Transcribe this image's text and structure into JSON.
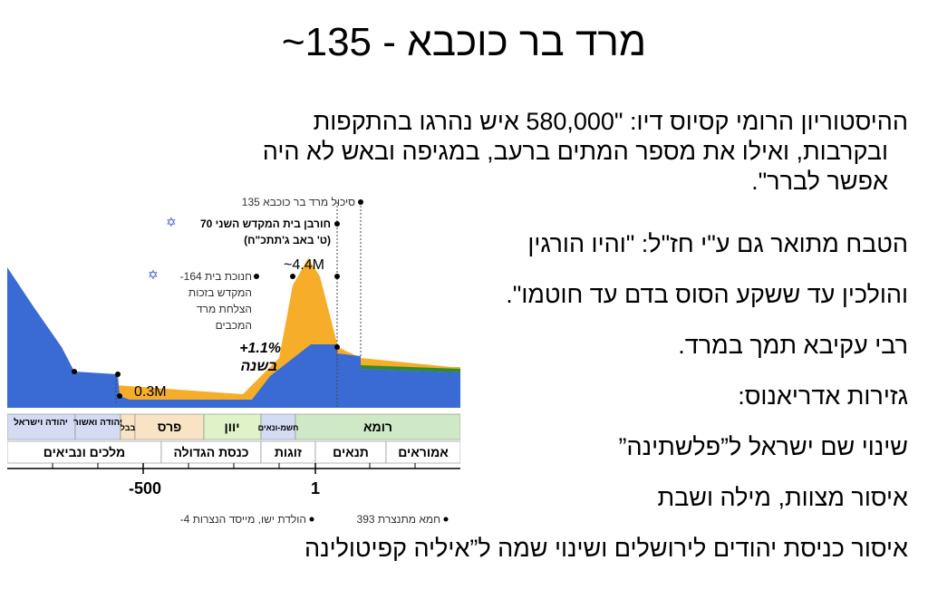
{
  "slide": {
    "title": "מרד בר כוכבא - 135~",
    "paragraphs": [
      {
        "line1": "ההיסטוריון הרומי קסיוס דיו: \"580,000 איש נהרגו בהתקפות",
        "line2": "ובקרבות, ואילו את מספר המתים ברעב, במגיפה ובאש לא היה",
        "line3": "אפשר לברר\"."
      },
      {
        "text": "הטבח מתואר גם ע\"י חז\"ל: \"והיו הורגין"
      },
      {
        "text": "והולכין עד ששקע הסוס בדם עד חוטמו\"."
      },
      {
        "text": "רבי עקיבא תמך במרד."
      },
      {
        "text": "גזירות אדריאנוס:"
      },
      {
        "text": "שינוי שם ישראל ל”פלשתינה”"
      },
      {
        "text": "איסור מצוות, מילה ושבת"
      },
      {
        "text": "איסור כניסת יהודים לירושלים ושינוי שמה ל”איליה קפיטולינה"
      }
    ]
  },
  "chart": {
    "annotations": {
      "a135": "135 סיכול מרד בר כוכבא",
      "a70_1": "70 חורבן בית המקדש השני",
      "a70_2": "(ט' באב ג'תתכ\"ח)",
      "a164_1": "-164 חנוכת בית",
      "a164_2": "המקדש בזכות",
      "a164_3": "הצלחת מרד",
      "a164_4": "המכבים",
      "peak": "~4.4M",
      "low": "0.3M",
      "growth1": "+1.1%",
      "growth2": "בשנה"
    },
    "periods": [
      "יהודה וישראל",
      "יהודה ואשור",
      "בבל",
      "פרס",
      "יוון",
      "חשמ-ונאים",
      "רומא"
    ],
    "eras": [
      "מלכים ונביאים",
      "כנסת הגדולה",
      "זוגות",
      "תנאים",
      "אמוראים"
    ],
    "axis_ticks": [
      "-500",
      "1"
    ],
    "footer_left": "-4 הולדת ישו, מייסד הנצרות",
    "footer_right": "393 חמא מתנצרת",
    "colors": {
      "jewish": "#3a6bd4",
      "gentile": "#f6ad29",
      "green": "#2e8b2e",
      "star": "#3a5fd4"
    }
  }
}
